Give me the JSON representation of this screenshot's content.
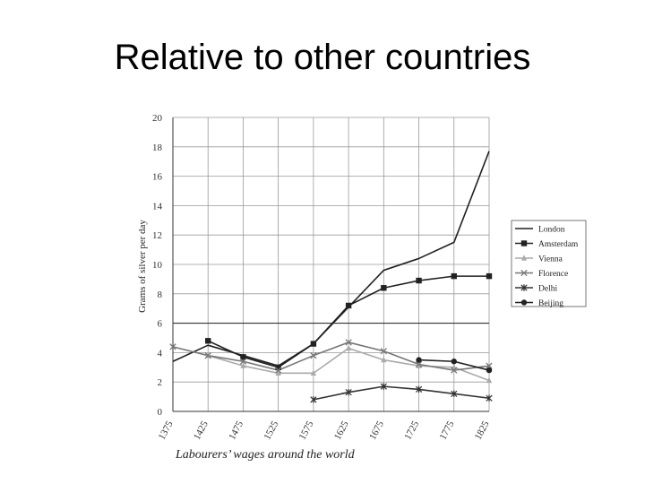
{
  "slide": {
    "title": "Relative to other countries",
    "caption": "Labourers’ wages around the world"
  },
  "chart_data": {
    "type": "line",
    "title": "",
    "xlabel": "",
    "ylabel": "Grams of silver per day",
    "x": [
      1375,
      1425,
      1475,
      1525,
      1575,
      1625,
      1675,
      1725,
      1775,
      1825
    ],
    "xticks": [
      "1375",
      "1425",
      "1475",
      "1525",
      "1575",
      "1625",
      "1675",
      "1725",
      "1775",
      "1825"
    ],
    "ylim": [
      0,
      20
    ],
    "yticks": [
      0,
      2,
      4,
      6,
      8,
      10,
      12,
      14,
      16,
      18,
      20
    ],
    "grid": true,
    "legend": "right",
    "series": [
      {
        "name": "London",
        "marker": "none",
        "color": "#222222",
        "values": [
          3.4,
          4.5,
          3.8,
          3.1,
          4.6,
          7.1,
          9.6,
          10.4,
          11.5,
          17.7
        ]
      },
      {
        "name": "Amsterdam",
        "marker": "square",
        "color": "#222222",
        "values": [
          null,
          4.8,
          3.7,
          3.0,
          4.6,
          7.2,
          8.4,
          8.9,
          9.2,
          9.2
        ]
      },
      {
        "name": "Vienna",
        "marker": "triangle",
        "color": "#aaaaaa",
        "values": [
          null,
          3.8,
          3.1,
          2.6,
          2.6,
          4.3,
          3.5,
          3.1,
          3.0,
          2.1
        ]
      },
      {
        "name": "Florence",
        "marker": "x",
        "color": "#777777",
        "values": [
          4.4,
          3.8,
          3.4,
          2.8,
          3.8,
          4.7,
          4.1,
          3.2,
          2.8,
          3.1
        ]
      },
      {
        "name": "Delhi",
        "marker": "star",
        "color": "#333333",
        "values": [
          null,
          null,
          null,
          null,
          0.8,
          1.3,
          1.7,
          1.5,
          1.2,
          0.9
        ]
      },
      {
        "name": "Beijing",
        "marker": "circle",
        "color": "#222222",
        "values": [
          null,
          null,
          null,
          null,
          null,
          null,
          null,
          3.5,
          3.4,
          2.8
        ]
      }
    ]
  }
}
